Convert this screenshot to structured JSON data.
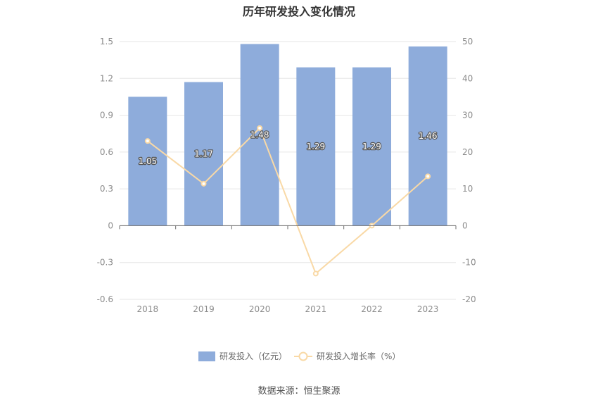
{
  "chart_data": {
    "type": "bar",
    "title": "历年研发投入变化情况",
    "categories": [
      "2018",
      "2019",
      "2020",
      "2021",
      "2022",
      "2023"
    ],
    "series": [
      {
        "name": "研发投入（亿元）",
        "type": "bar",
        "axis": "left",
        "values": [
          1.05,
          1.17,
          1.48,
          1.29,
          1.29,
          1.46
        ],
        "labels": [
          "1.05",
          "1.17",
          "1.48",
          "1.29",
          "1.29",
          "1.46"
        ]
      },
      {
        "name": "研发投入增长率（%）",
        "type": "line",
        "axis": "right",
        "values": [
          23.0,
          11.4,
          26.5,
          -13.0,
          0.0,
          13.4
        ]
      }
    ],
    "y_left": {
      "ylim": [
        -0.6,
        1.5
      ],
      "ticks": [
        "-0.6",
        "-0.3",
        "0",
        "0.3",
        "0.6",
        "0.9",
        "1.2",
        "1.5"
      ]
    },
    "y_right": {
      "ylim": [
        -20,
        50
      ],
      "ticks": [
        "-20",
        "-10",
        "0",
        "10",
        "20",
        "30",
        "40",
        "50"
      ]
    },
    "grid": true,
    "legend_position": "bottom",
    "colors": {
      "bar": "#8eacdb",
      "line": "#f9d9a6"
    }
  },
  "source": "数据来源：恒生聚源"
}
